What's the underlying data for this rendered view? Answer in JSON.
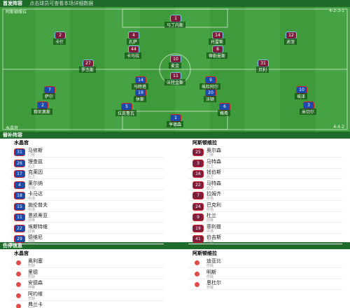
{
  "header": {
    "title": "首发阵容",
    "subtitle": "点击球员可查看本场详细数据"
  },
  "pitch": {
    "top_team": {
      "name": "阿斯顿维拉",
      "formation": "4-2-3-1",
      "color": "#7a1e3c",
      "trim": "#7cc4ee"
    },
    "bottom_team": {
      "name": "水晶宫",
      "formation": "4-4-2",
      "color": "#1b4aa8",
      "trim": "#d2232a"
    },
    "top_players": [
      {
        "number": 1,
        "name": "马丁内斯"
      },
      {
        "number": 2,
        "name": "卡什"
      },
      {
        "number": 4,
        "name": "孔萨"
      },
      {
        "number": 14,
        "name": "托雷斯"
      },
      {
        "number": 12,
        "name": "迪涅"
      },
      {
        "number": 44,
        "name": "卡马拉"
      },
      {
        "number": 8,
        "name": "蒂勒曼斯"
      },
      {
        "number": 27,
        "name": "罗杰斯"
      },
      {
        "number": 10,
        "name": "麦金"
      },
      {
        "number": 31,
        "name": "贝利"
      },
      {
        "number": 11,
        "name": "沃特金斯"
      }
    ],
    "bottom_players": [
      {
        "number": 1,
        "name": "亨德森"
      },
      {
        "number": 2,
        "name": "穆尼奥斯"
      },
      {
        "number": 5,
        "name": "拉克鲁瓦"
      },
      {
        "number": 6,
        "name": "格希"
      },
      {
        "number": 3,
        "name": "米切尔"
      },
      {
        "number": 7,
        "name": "萨尔"
      },
      {
        "number": 19,
        "name": "休斯"
      },
      {
        "number": 20,
        "name": "沃顿"
      },
      {
        "number": 10,
        "name": "埃泽"
      },
      {
        "number": 14,
        "name": "马特塔"
      },
      {
        "number": 9,
        "name": "埃杜阿尔"
      }
    ]
  },
  "subs": {
    "title": "替补阵容",
    "left_team": "水晶宫",
    "right_team": "阿斯顿维拉",
    "left": [
      {
        "number": 31,
        "name": "马修斯",
        "pos": "门将"
      },
      {
        "number": 26,
        "name": "理查兹",
        "pos": "后卫"
      },
      {
        "number": 17,
        "name": "克莱因",
        "pos": "后卫"
      },
      {
        "number": 4,
        "name": "莱尔纳",
        "pos": "中场"
      },
      {
        "number": 18,
        "name": "卡马达",
        "pos": "中场"
      },
      {
        "number": 15,
        "name": "施伦普夫",
        "pos": "中场"
      },
      {
        "number": 11,
        "name": "恩凯蒂亚",
        "pos": "前锋"
      },
      {
        "number": 22,
        "name": "埃斯特维",
        "pos": "前锋"
      },
      {
        "number": 29,
        "name": "德维尼",
        "pos": "前锋"
      }
    ],
    "right": [
      {
        "number": 25,
        "name": "奥尔森",
        "pos": "门将"
      },
      {
        "number": 3,
        "name": "马特森",
        "pos": "后卫"
      },
      {
        "number": 16,
        "name": "钱伯斯",
        "pos": "后卫"
      },
      {
        "number": 22,
        "name": "马特森",
        "pos": "后卫"
      },
      {
        "number": 7,
        "name": "拉姆齐",
        "pos": "中场"
      },
      {
        "number": 24,
        "name": "巴克利",
        "pos": "中场"
      },
      {
        "number": 9,
        "name": "杜兰",
        "pos": "前锋"
      },
      {
        "number": 19,
        "name": "菲利普",
        "pos": "中场"
      },
      {
        "number": 41,
        "name": "伯吉斯",
        "pos": "中场"
      }
    ]
  },
  "injuries": {
    "title": "伤停信息",
    "left_team": "水晶宫",
    "right_team": "阿斯顿维拉",
    "left": [
      {
        "name": "奥利塞",
        "status": "伤缺"
      },
      {
        "name": "里德",
        "status": "伤缺"
      },
      {
        "name": "安德森",
        "status": "停赛"
      },
      {
        "name": "阿约维",
        "status": "伤缺"
      },
      {
        "name": "弗兰卡",
        "status": "存疑"
      },
      {
        "name": "阿比卢",
        "status": "伤缺"
      }
    ],
    "right": [
      {
        "name": "迪亚比",
        "status": "伤缺"
      },
      {
        "name": "明斯",
        "status": "伤缺"
      },
      {
        "name": "恩杜尔",
        "status": "存疑"
      }
    ]
  }
}
